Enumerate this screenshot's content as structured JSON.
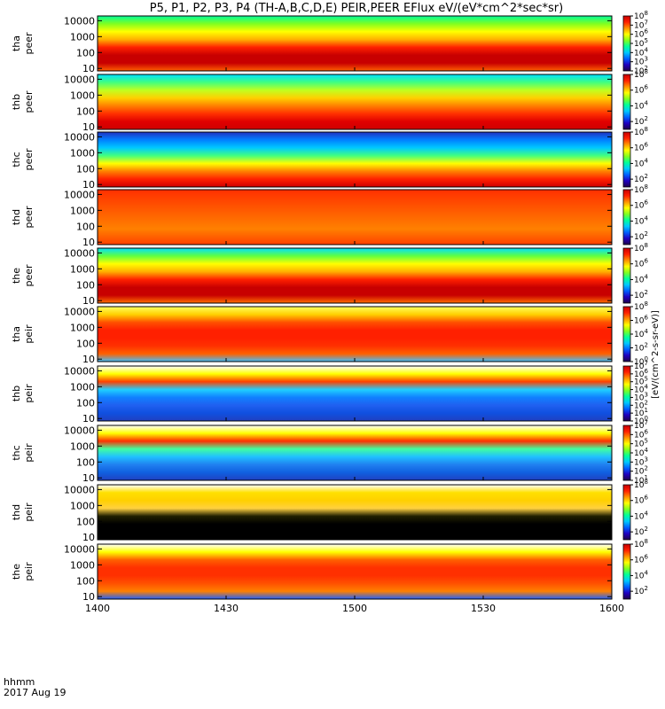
{
  "chart_data": {
    "type": "heatmap",
    "title": "P5, P1, P2, P3, P4 (TH-A,B,C,D,E) PEIR,PEER EFlux eV/(eV*cm^2*sec*sr)",
    "x_label_top": "hhmm",
    "x_label_bottom": "2017 Aug 19",
    "x_ticks": [
      "1400",
      "1430",
      "1500",
      "1530",
      "1600"
    ],
    "xlim": [
      "1400",
      "1600"
    ],
    "y_ticks": [
      "10",
      "100",
      "1000",
      "10000"
    ],
    "ylim": [
      7,
      20000
    ],
    "y_scale": "log",
    "colorbar_scale": "log",
    "colormap": [
      "#20004a",
      "#2000c0",
      "#0060ff",
      "#00c8ff",
      "#00ff9a",
      "#80ff20",
      "#ffff00",
      "#ff9000",
      "#ff2000",
      "#c80000"
    ],
    "colorbar_unit_text": "[eV/(cm^2-s-sr-eV)]",
    "panels": [
      {
        "probe": "tha",
        "species": "peer",
        "cb_ticks": [
          "10^8",
          "10^7",
          "10^6",
          "10^5",
          "10^4",
          "10^3",
          "10^2"
        ],
        "color_range": [
          2,
          8
        ]
      },
      {
        "probe": "thb",
        "species": "peer",
        "cb_ticks": [
          "10^8",
          "10^6",
          "10^4",
          "10^2"
        ],
        "color_range": [
          1,
          8
        ]
      },
      {
        "probe": "thc",
        "species": "peer",
        "cb_ticks": [
          "10^8",
          "10^6",
          "10^4",
          "10^2"
        ],
        "color_range": [
          1,
          8
        ]
      },
      {
        "probe": "thd",
        "species": "peer",
        "cb_ticks": [
          "10^8",
          "10^6",
          "10^4",
          "10^2"
        ],
        "color_range": [
          1,
          8
        ]
      },
      {
        "probe": "the",
        "species": "peer",
        "cb_ticks": [
          "10^8",
          "10^6",
          "10^4",
          "10^2"
        ],
        "color_range": [
          1,
          8
        ]
      },
      {
        "probe": "tha",
        "species": "peir",
        "cb_ticks": [
          "10^8",
          "10^6",
          "10^4",
          "10^2",
          "10^0"
        ],
        "color_range": [
          0,
          8
        ]
      },
      {
        "probe": "thb",
        "species": "peir",
        "cb_ticks": [
          "10^7",
          "10^6",
          "10^5",
          "10^4",
          "10^3",
          "10^2",
          "10^1",
          "10^0"
        ],
        "color_range": [
          0,
          7
        ]
      },
      {
        "probe": "thc",
        "species": "peir",
        "cb_ticks": [
          "10^7",
          "10^6",
          "10^5",
          "10^4",
          "10^3",
          "10^2",
          "10^1"
        ],
        "color_range": [
          1,
          7
        ]
      },
      {
        "probe": "thd",
        "species": "peir",
        "cb_ticks": [
          "10^8",
          "10^6",
          "10^4",
          "10^2"
        ],
        "color_range": [
          1,
          8
        ]
      },
      {
        "probe": "the",
        "species": "peir",
        "cb_ticks": [
          "10^8",
          "10^6",
          "10^4",
          "10^2"
        ],
        "color_range": [
          1,
          8
        ]
      }
    ]
  }
}
